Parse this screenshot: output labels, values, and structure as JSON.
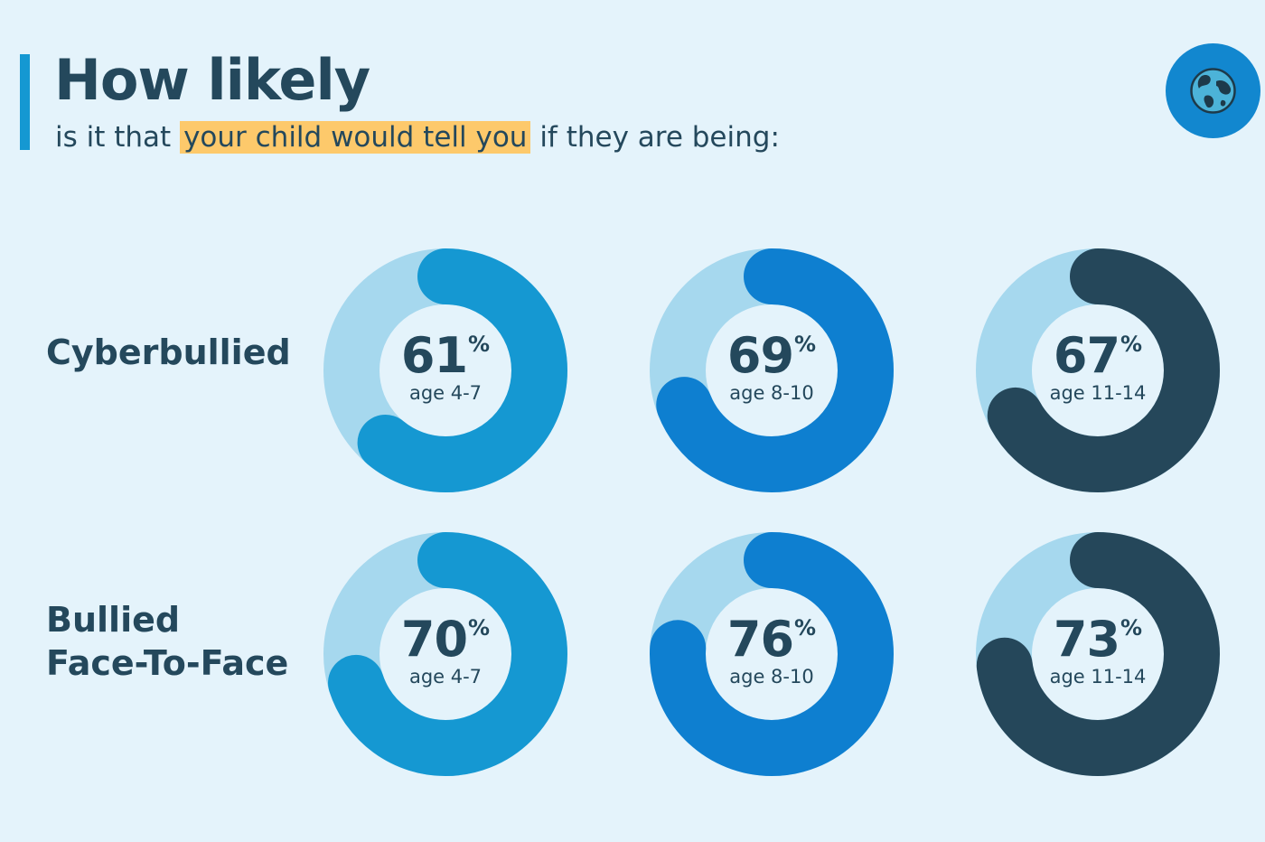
{
  "header": {
    "title": "How likely",
    "subtitle_before": "is it that",
    "subtitle_highlight": "your child would tell you",
    "subtitle_after": "if they are being:",
    "highlight_color": "#fdc96b",
    "logo_icon": "globe-icon"
  },
  "chart_data": {
    "type": "pie",
    "percent_symbol": "%",
    "colors": {
      "track": "#a6d8ee",
      "age_4_7": "#1598d2",
      "age_8_10": "#0e7fd0",
      "age_11_14": "#25475a"
    },
    "rows": [
      {
        "label_lines": [
          "Cyberbullied"
        ],
        "items": [
          {
            "value": 61,
            "age": "age 4-7",
            "color": "#1598d2"
          },
          {
            "value": 69,
            "age": "age 8-10",
            "color": "#0e7fd0"
          },
          {
            "value": 67,
            "age": "age 11-14",
            "color": "#25475a"
          }
        ]
      },
      {
        "label_lines": [
          "Bullied",
          "Face-To-Face"
        ],
        "items": [
          {
            "value": 70,
            "age": "age 4-7",
            "color": "#1598d2"
          },
          {
            "value": 76,
            "age": "age 8-10",
            "color": "#0e7fd0"
          },
          {
            "value": 73,
            "age": "age 11-14",
            "color": "#25475a"
          }
        ]
      }
    ]
  }
}
